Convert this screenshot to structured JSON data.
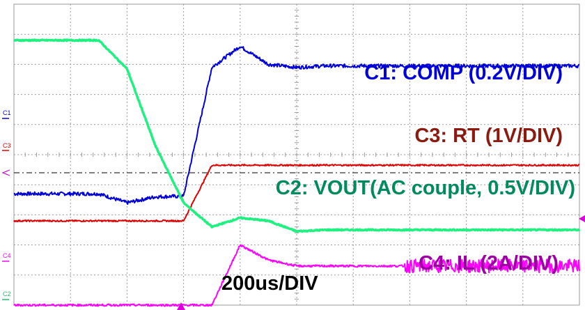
{
  "chart_data": {
    "type": "line",
    "title": "",
    "grid": true,
    "time_div": "200us/DIV",
    "x": [
      0,
      0.5,
      1,
      1.5,
      2,
      2.5,
      3,
      3.5,
      4,
      4.5,
      5,
      5.5,
      6,
      6.5,
      7,
      7.5,
      8,
      8.5,
      9,
      9.5,
      10
    ],
    "series": [
      {
        "name": "C1: COMP (0.2V/DIV)",
        "channel": "C1",
        "color": "#0000d8",
        "values": [
          3.7,
          3.7,
          3.7,
          3.7,
          3.4,
          3.6,
          3.62,
          7.9,
          8.6,
          8.0,
          7.9,
          7.95,
          7.95,
          7.95,
          7.95,
          7.95,
          7.95,
          7.95,
          7.95,
          7.95,
          7.95
        ]
      },
      {
        "name": "C3: RT (1V/DIV)",
        "channel": "C3",
        "color": "#e00000",
        "values": [
          2.8,
          2.8,
          2.8,
          2.8,
          2.8,
          2.8,
          2.8,
          4.65,
          4.65,
          4.65,
          4.65,
          4.65,
          4.65,
          4.65,
          4.65,
          4.65,
          4.65,
          4.65,
          4.65,
          4.65,
          4.65
        ]
      },
      {
        "name": "C2: VOUT(AC couple, 0.5V/DIV)",
        "channel": "C2",
        "color": "#20f080",
        "values": [
          8.8,
          8.8,
          8.8,
          8.8,
          7.85,
          5.3,
          3.4,
          2.6,
          2.9,
          2.8,
          2.45,
          2.5,
          2.5,
          2.5,
          2.5,
          2.5,
          2.5,
          2.5,
          2.5,
          2.5,
          2.5
        ]
      },
      {
        "name": "C4: IL (2A/DIV)",
        "channel": "C4",
        "color": "#ff00ff",
        "values": [
          0.0,
          0.0,
          0.0,
          0.0,
          0.0,
          0.0,
          0.0,
          0.0,
          2.0,
          1.5,
          1.3,
          1.3,
          1.3,
          1.3,
          1.3,
          1.3,
          1.3,
          1.3,
          1.3,
          1.3,
          1.3
        ]
      }
    ]
  },
  "labels": {
    "comp": "C1: COMP (0.2V/DIV)",
    "rt": "C3: RT (1V/DIV)",
    "vout": "C2: VOUT(AC couple, 0.5V/DIV)",
    "il": "C4: IL (2A/DIV)",
    "timebase": "200us/DIV"
  },
  "markers": {
    "c1": "C1",
    "c3": "C3",
    "c4": "C4",
    "c2": "C2"
  },
  "colors": {
    "grid": "#9a9a9a",
    "trigger": "#cc00cc",
    "comp_label": "#0000d8",
    "rt_label": "#8b1a10",
    "vout_label": "#008a5e",
    "il_label": "#9b00a0"
  }
}
